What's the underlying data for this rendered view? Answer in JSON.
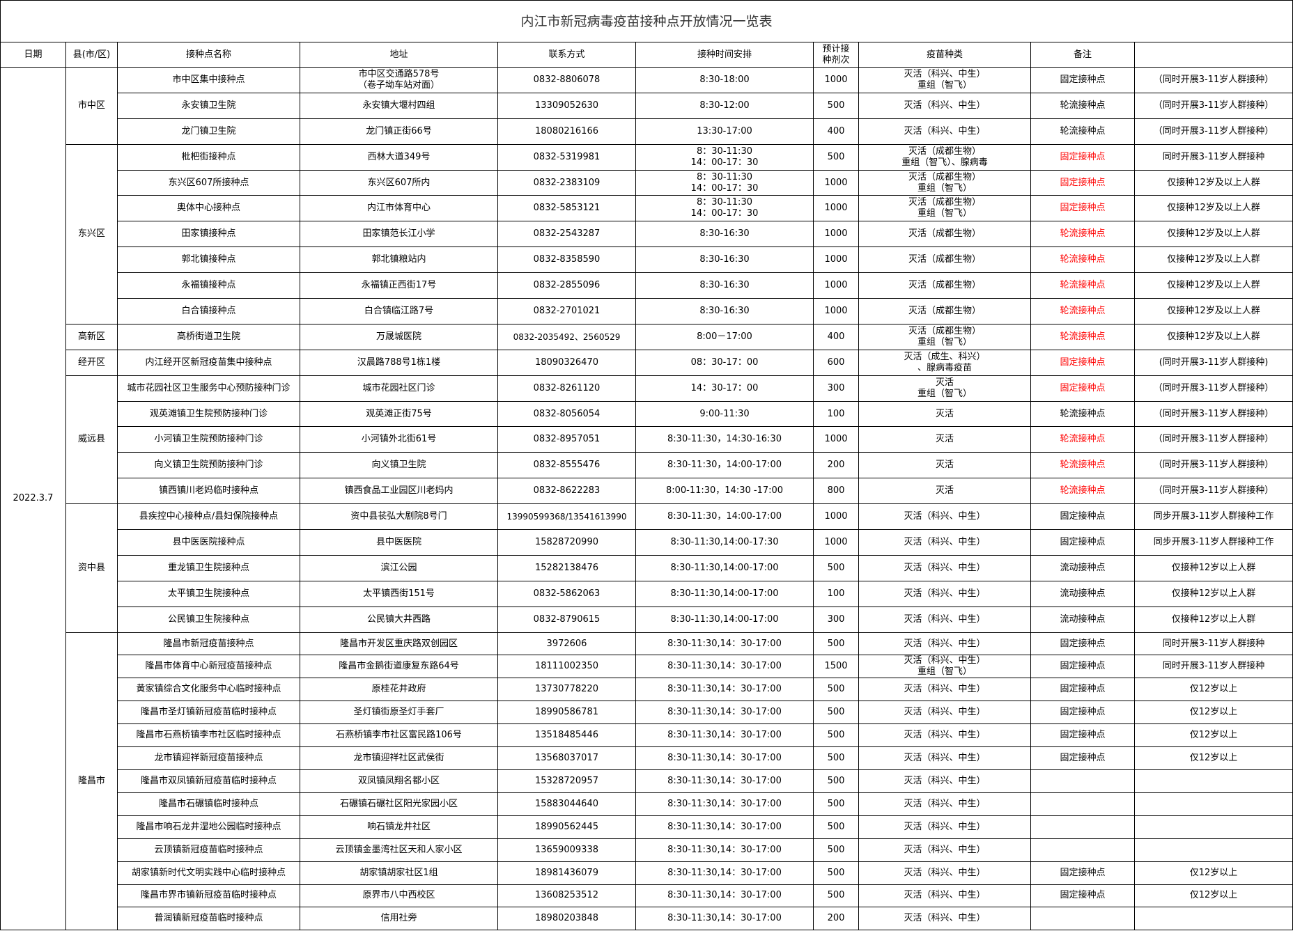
{
  "title": "内江市新冠病毒疫苗接种点开放情况一览表",
  "headers": [
    "日期",
    "县(市/区)",
    "接种点名称",
    "地址",
    "联系方式",
    "接种时间安排",
    "预计接\n种剂次",
    "疫苗种类",
    "备注",
    ""
  ],
  "date": "2022.3.7",
  "colors": {
    "highlight": "#ff0000",
    "border": "#000000"
  },
  "districts": [
    {
      "name": "市中区",
      "sites": [
        {
          "name": "市中区集中接种点",
          "address": "市中区交通路578号\n（卷子坳车站对面）",
          "phone": "0832-8806078",
          "time": "8:30-18:00",
          "doses": "1000",
          "vaccine": "灭活（科兴、中生）\n重组（智飞）",
          "type": "固定接种点",
          "red": false,
          "note": "（同时开展3-11岁人群接种）"
        },
        {
          "name": "永安镇卫生院",
          "address": "永安镇大堰村四组",
          "phone": "13309052630",
          "time": "8:30-12:00",
          "doses": "500",
          "vaccine": "灭活（科兴、中生）",
          "type": "轮流接种点",
          "red": false,
          "note": "（同时开展3-11岁人群接种）"
        },
        {
          "name": "龙门镇卫生院",
          "address": "龙门镇正街66号",
          "phone": "18080216166",
          "time": "13:30-17:00",
          "doses": "400",
          "vaccine": "灭活（科兴、中生）",
          "type": "轮流接种点",
          "red": false,
          "note": "（同时开展3-11岁人群接种）"
        }
      ]
    },
    {
      "name": "东兴区",
      "sites": [
        {
          "name": "枇杷街接种点",
          "address": "西林大道349号",
          "phone": "0832-5319981",
          "time": "8：30-11:30\n14：00-17：30",
          "doses": "500",
          "vaccine": "灭活（成都生物）\n重组（智飞）、腺病毒",
          "type": "固定接种点",
          "red": true,
          "note": "同时开展3-11岁人群接种"
        },
        {
          "name": "东兴区607所接种点",
          "address": "东兴区607所内",
          "phone": "0832-2383109",
          "time": "8：30-11:30\n14：00-17：30",
          "doses": "1000",
          "vaccine": "灭活（成都生物）\n重组（智飞）",
          "type": "固定接种点",
          "red": true,
          "note": "仅接种12岁及以上人群"
        },
        {
          "name": "奥体中心接种点",
          "address": "内江市体育中心",
          "phone": "0832-5853121",
          "time": "8：30-11:30\n14：00-17：30",
          "doses": "1000",
          "vaccine": "灭活（成都生物）\n重组（智飞）",
          "type": "固定接种点",
          "red": true,
          "note": "仅接种12岁及以上人群"
        },
        {
          "name": "田家镇接种点",
          "address": "田家镇范长江小学",
          "phone": "0832-2543287",
          "time": "8:30-16:30",
          "doses": "1000",
          "vaccine": "灭活（成都生物）",
          "type": "轮流接种点",
          "red": true,
          "note": "仅接种12岁及以上人群"
        },
        {
          "name": "郭北镇接种点",
          "address": "郭北镇粮站内",
          "phone": "0832-8358590",
          "time": "8:30-16:30",
          "doses": "1000",
          "vaccine": "灭活（成都生物）",
          "type": "轮流接种点",
          "red": true,
          "note": "仅接种12岁及以上人群"
        },
        {
          "name": "永福镇接种点",
          "address": "永福镇正西街17号",
          "phone": "0832-2855096",
          "time": "8:30-16:30",
          "doses": "1000",
          "vaccine": "灭活（成都生物）",
          "type": "轮流接种点",
          "red": true,
          "note": "仅接种12岁及以上人群"
        },
        {
          "name": "白合镇接种点",
          "address": "白合镇临江路7号",
          "phone": "0832-2701021",
          "time": "8:30-16:30",
          "doses": "1000",
          "vaccine": "灭活（成都生物）",
          "type": "轮流接种点",
          "red": true,
          "note": "仅接种12岁及以上人群"
        }
      ]
    },
    {
      "name": "高新区",
      "sites": [
        {
          "name": "高桥街道卫生院",
          "address": "万晟城医院",
          "phone": "0832-2035492、2560529",
          "time": "8:00－17:00",
          "doses": "400",
          "vaccine": "灭活（成都生物）\n重组（智飞）",
          "type": "轮流接种点",
          "red": true,
          "note": "仅接种12岁及以上人群"
        }
      ]
    },
    {
      "name": "经开区",
      "sites": [
        {
          "name": "内江经开区新冠疫苗集中接种点",
          "address": "汉晨路788号1栋1楼",
          "phone": "18090326470",
          "time": "08：30-17：00",
          "doses": "600",
          "vaccine": "灭活（成生、科兴）\n、腺病毒疫苗",
          "type": "固定接种点",
          "red": true,
          "note": "(同时开展3-11岁人群接种)"
        }
      ]
    },
    {
      "name": "威远县",
      "sites": [
        {
          "name": "城市花园社区卫生服务中心预防接种门诊",
          "address": "城市花园社区门诊",
          "phone": "0832-8261120",
          "time": "14：30-17：00",
          "doses": "300",
          "vaccine": "灭活\n重组（智飞）",
          "type": "固定接种点",
          "red": true,
          "note": "（同时开展3-11岁人群接种）"
        },
        {
          "name": "观英滩镇卫生院预防接种门诊",
          "address": "观英滩正街75号",
          "phone": "0832-8056054",
          "time": "9:00-11:30",
          "doses": "100",
          "vaccine": "灭活",
          "type": "轮流接种点",
          "red": false,
          "note": "（同时开展3-11岁人群接种）"
        },
        {
          "name": "小河镇卫生院预防接种门诊",
          "address": "小河镇外北街61号",
          "phone": "0832-8957051",
          "time": "8:30-11:30，14:30-16:30",
          "doses": "1000",
          "vaccine": "灭活",
          "type": "轮流接种点",
          "red": true,
          "note": "（同时开展3-11岁人群接种）"
        },
        {
          "name": "向义镇卫生院预防接种门诊",
          "address": "向义镇卫生院",
          "phone": "0832-8555476",
          "time": "8:30-11:30，14:00-17:00",
          "doses": "200",
          "vaccine": "灭活",
          "type": "轮流接种点",
          "red": true,
          "note": "（同时开展3-11岁人群接种）"
        },
        {
          "name": "镇西镇川老妈临时接种点",
          "address": "镇西食品工业园区川老妈内",
          "phone": "0832-8622283",
          "time": "8:00-11:30，14:30 -17:00",
          "doses": "800",
          "vaccine": "灭活",
          "type": "轮流接种点",
          "red": true,
          "note": "（同时开展3-11岁人群接种）"
        }
      ]
    },
    {
      "name": "资中县",
      "sites": [
        {
          "name": "县疾控中心接种点/县妇保院接种点",
          "address": "资中县苌弘大剧院8号门",
          "phone": "13990599368/13541613990",
          "time": "8:30-11:30，14:00-17:00",
          "doses": "1000",
          "vaccine": "灭活（科兴、中生）",
          "type": "固定接种点",
          "red": false,
          "note": "同步开展3-11岁人群接种工作"
        },
        {
          "name": "县中医医院接种点",
          "address": "县中医医院",
          "phone": "15828720990",
          "time": "8:30-11:30,14:00-17:30",
          "doses": "1000",
          "vaccine": "灭活（科兴、中生）",
          "type": "固定接种点",
          "red": false,
          "note": "同步开展3-11岁人群接种工作"
        },
        {
          "name": "重龙镇卫生院接种点",
          "address": "滨江公园",
          "phone": "15282138476",
          "time": "8:30-11:30,14:00-17:00",
          "doses": "500",
          "vaccine": "灭活（科兴、中生）",
          "type": "流动接种点",
          "red": false,
          "note": "仅接种12岁以上人群"
        },
        {
          "name": "太平镇卫生院接种点",
          "address": "太平镇西街151号",
          "phone": "0832-5862063",
          "time": "8:30-11:30,14:00-17:00",
          "doses": "100",
          "vaccine": "灭活（科兴、中生）",
          "type": "流动接种点",
          "red": false,
          "note": "仅接种12岁以上人群"
        },
        {
          "name": "公民镇卫生院接种点",
          "address": "公民镇大井西路",
          "phone": "0832-8790615",
          "time": "8:30-11:30,14:00-17:00",
          "doses": "300",
          "vaccine": "灭活（科兴、中生）",
          "type": "流动接种点",
          "red": false,
          "note": "仅接种12岁以上人群"
        }
      ]
    },
    {
      "name": "隆昌市",
      "sites": [
        {
          "name": "隆昌市新冠疫苗接种点",
          "address": "隆昌市开发区重庆路双创园区",
          "phone": "3972606",
          "time": "8:30-11:30,14：30-17:00",
          "doses": "500",
          "vaccine": "灭活（科兴、中生）",
          "type": "固定接种点",
          "red": false,
          "note": "同时开展3-11岁人群接种"
        },
        {
          "name": "隆昌市体育中心新冠疫苗接种点",
          "address": "隆昌市金鹅街道康复东路64号",
          "phone": "18111002350",
          "time": "8:30-11:30,14：30-17:00",
          "doses": "1500",
          "vaccine": "灭活（科兴、中生）\n重组（智飞）",
          "type": "固定接种点",
          "red": false,
          "note": "同时开展3-11岁人群接种"
        },
        {
          "name": "黄家镇综合文化服务中心临时接种点",
          "address": "原桂花井政府",
          "phone": "13730778220",
          "time": "8:30-11:30,14：30-17:00",
          "doses": "500",
          "vaccine": "灭活（科兴、中生）",
          "type": "固定接种点",
          "red": false,
          "note": "仅12岁以上"
        },
        {
          "name": "隆昌市圣灯镇新冠疫苗临时接种点",
          "address": "圣灯镇街原圣灯手套厂",
          "phone": "18990586781",
          "time": "8:30-11:30,14：30-17:00",
          "doses": "500",
          "vaccine": "灭活（科兴、中生）",
          "type": "固定接种点",
          "red": false,
          "note": "仅12岁以上"
        },
        {
          "name": "隆昌市石燕桥镇李市社区临时接种点",
          "address": "石燕桥镇李市社区富民路106号",
          "phone": "13518485446",
          "time": "8:30-11:30,14：30-17:00",
          "doses": "500",
          "vaccine": "灭活（科兴、中生）",
          "type": "固定接种点",
          "red": false,
          "note": "仅12岁以上"
        },
        {
          "name": "龙市镇迎祥新冠疫苗接种点",
          "address": "龙市镇迎祥社区武侯街",
          "phone": "13568037017",
          "time": "8:30-11:30,14：30-17:00",
          "doses": "500",
          "vaccine": "灭活（科兴、中生）",
          "type": "固定接种点",
          "red": false,
          "note": "仅12岁以上"
        },
        {
          "name": "隆昌市双凤镇新冠疫苗临时接种点",
          "address": "双凤镇凤翔名都小区",
          "phone": "15328720957",
          "time": "8:30-11:30,14：30-17:00",
          "doses": "500",
          "vaccine": "灭活（科兴、中生）",
          "type": "",
          "red": false,
          "note": ""
        },
        {
          "name": "隆昌市石碾镇临时接种点",
          "address": "石碾镇石碾社区阳光家园小区",
          "phone": "15883044640",
          "time": "8:30-11:30,14：30-17:00",
          "doses": "500",
          "vaccine": "灭活（科兴、中生）",
          "type": "",
          "red": false,
          "note": ""
        },
        {
          "name": "隆昌市响石龙井湿地公园临时接种点",
          "address": "响石镇龙井社区",
          "phone": "18990562445",
          "time": "8:30-11:30,14：30-17:00",
          "doses": "500",
          "vaccine": "灭活（科兴、中生）",
          "type": "",
          "red": false,
          "note": ""
        },
        {
          "name": "云顶镇新冠疫苗临时接种点",
          "address": "云顶镇金墨湾社区天和人家小区",
          "phone": "13659009338",
          "time": "8:30-11:30,14：30-17:00",
          "doses": "500",
          "vaccine": "灭活（科兴、中生）",
          "type": "",
          "red": false,
          "note": ""
        },
        {
          "name": "胡家镇新时代文明实践中心临时接种点",
          "address": "胡家镇胡家社区1组",
          "phone": "18981436079",
          "time": "8:30-11:30,14：30-17:00",
          "doses": "500",
          "vaccine": "灭活（科兴、中生）",
          "type": "固定接种点",
          "red": false,
          "note": "仅12岁以上"
        },
        {
          "name": "隆昌市界市镇新冠疫苗临时接种点",
          "address": "原界市八中西校区",
          "phone": "13608253512",
          "time": "8:30-11:30,14：30-17:00",
          "doses": "500",
          "vaccine": "灭活（科兴、中生）",
          "type": "固定接种点",
          "red": false,
          "note": "仅12岁以上"
        },
        {
          "name": "普润镇新冠疫苗临时接种点",
          "address": "信用社旁",
          "phone": "18980203848",
          "time": "8:30-11:30,14：30-17:00",
          "doses": "200",
          "vaccine": "灭活（科兴、中生）",
          "type": "",
          "red": false,
          "note": ""
        }
      ]
    }
  ]
}
